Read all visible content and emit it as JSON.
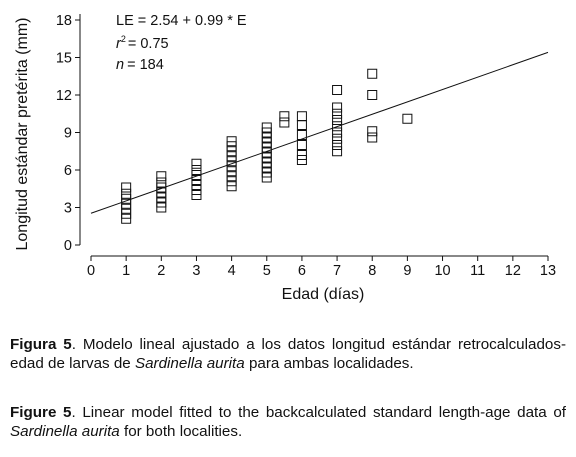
{
  "chart_data": {
    "type": "scatter",
    "xlabel": "Edad (días)",
    "ylabel": "Longitud estándar pretérita (mm)",
    "xlim": [
      0,
      13
    ],
    "ylim": [
      0,
      18
    ],
    "xticks": [
      "0",
      "1",
      "2",
      "3",
      "4",
      "5",
      "6",
      "7",
      "8",
      "9",
      "10",
      "11",
      "12",
      "13"
    ],
    "yticks": [
      "0",
      "3",
      "6",
      "9",
      "12",
      "15",
      "18"
    ],
    "grid": false,
    "marker": "open-square",
    "annotation": {
      "equation": "LE = 2.54 + 0.99 * E",
      "r2_label": "r",
      "r2_sup": "2",
      "r2_value": "= 0.75",
      "n_label": "n",
      "n_value": "= 184"
    },
    "regression": {
      "intercept": 2.54,
      "slope": 0.99,
      "x_range": [
        0,
        13
      ]
    },
    "points": [
      {
        "x": 1,
        "y": 2.1
      },
      {
        "x": 1,
        "y": 2.5
      },
      {
        "x": 1,
        "y": 2.9
      },
      {
        "x": 1,
        "y": 3.3
      },
      {
        "x": 1,
        "y": 3.7
      },
      {
        "x": 1,
        "y": 4.1
      },
      {
        "x": 1,
        "y": 4.6
      },
      {
        "x": 2,
        "y": 3.0
      },
      {
        "x": 2,
        "y": 3.4
      },
      {
        "x": 2,
        "y": 3.8
      },
      {
        "x": 2,
        "y": 4.2
      },
      {
        "x": 2,
        "y": 4.6
      },
      {
        "x": 2,
        "y": 5.0
      },
      {
        "x": 2,
        "y": 5.5
      },
      {
        "x": 3,
        "y": 4.0
      },
      {
        "x": 3,
        "y": 4.4
      },
      {
        "x": 3,
        "y": 4.8
      },
      {
        "x": 3,
        "y": 5.2
      },
      {
        "x": 3,
        "y": 5.6
      },
      {
        "x": 3,
        "y": 6.0
      },
      {
        "x": 3,
        "y": 6.5
      },
      {
        "x": 4,
        "y": 4.7
      },
      {
        "x": 4,
        "y": 5.1
      },
      {
        "x": 4,
        "y": 5.5
      },
      {
        "x": 4,
        "y": 5.9
      },
      {
        "x": 4,
        "y": 6.3
      },
      {
        "x": 4,
        "y": 6.7
      },
      {
        "x": 4,
        "y": 7.1
      },
      {
        "x": 4,
        "y": 7.5
      },
      {
        "x": 4,
        "y": 7.9
      },
      {
        "x": 4,
        "y": 8.3
      },
      {
        "x": 5,
        "y": 5.4
      },
      {
        "x": 5,
        "y": 5.8
      },
      {
        "x": 5,
        "y": 6.2
      },
      {
        "x": 5,
        "y": 6.6
      },
      {
        "x": 5,
        "y": 7.0
      },
      {
        "x": 5,
        "y": 7.4
      },
      {
        "x": 5,
        "y": 7.8
      },
      {
        "x": 5,
        "y": 8.2
      },
      {
        "x": 5,
        "y": 8.6
      },
      {
        "x": 5,
        "y": 9.0
      },
      {
        "x": 5,
        "y": 9.4
      },
      {
        "x": 5.5,
        "y": 9.8
      },
      {
        "x": 5.5,
        "y": 10.3
      },
      {
        "x": 6,
        "y": 6.8
      },
      {
        "x": 6,
        "y": 7.2
      },
      {
        "x": 6,
        "y": 8.0
      },
      {
        "x": 6,
        "y": 8.8
      },
      {
        "x": 6,
        "y": 9.6
      },
      {
        "x": 6,
        "y": 10.3
      },
      {
        "x": 7,
        "y": 7.5
      },
      {
        "x": 7,
        "y": 8.0
      },
      {
        "x": 7,
        "y": 8.5
      },
      {
        "x": 7,
        "y": 9.0
      },
      {
        "x": 7,
        "y": 9.5
      },
      {
        "x": 7,
        "y": 10.0
      },
      {
        "x": 7,
        "y": 10.5
      },
      {
        "x": 7,
        "y": 11.0
      },
      {
        "x": 7,
        "y": 12.4
      },
      {
        "x": 8,
        "y": 8.6
      },
      {
        "x": 8,
        "y": 9.1
      },
      {
        "x": 8,
        "y": 12.0
      },
      {
        "x": 8,
        "y": 13.7
      },
      {
        "x": 9,
        "y": 10.1
      }
    ]
  },
  "captions": {
    "es_label": "Figura 5",
    "es_text_1": ". Modelo lineal ajustado a los datos longitud estándar retrocalculados-edad de larvas de ",
    "es_species": "Sardinella aurita",
    "es_text_2": " para ambas localidades.",
    "en_label": "Figure 5",
    "en_text_1": ". Linear model fitted to the backcalculated standard length-age data of ",
    "en_species": "Sardinella aurita",
    "en_text_2": " for both localities."
  }
}
